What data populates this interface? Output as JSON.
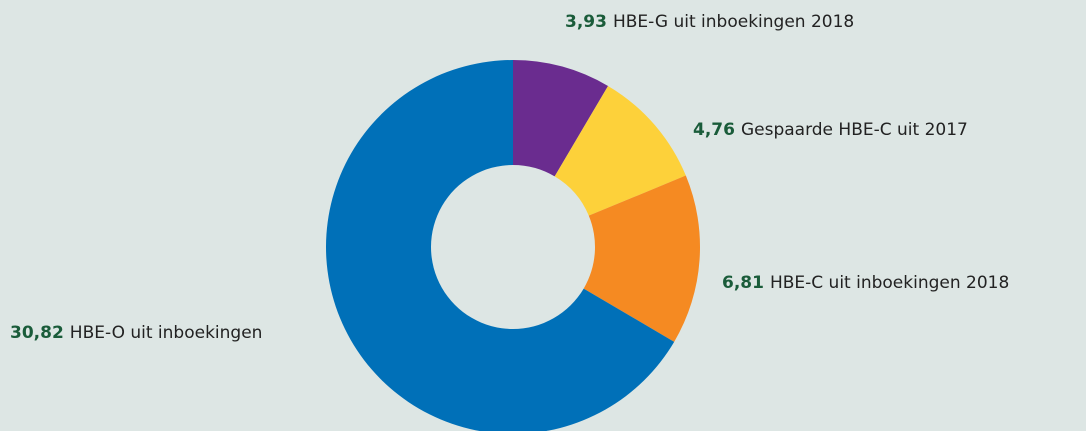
{
  "chart_data": {
    "type": "donut",
    "categories": [
      "HBE-G uit inboekingen 2018",
      "Gespaarde HBE-C uit 2017",
      "HBE-C uit inboekingen 2018",
      "HBE-O uit inboekingen"
    ],
    "values": [
      3.93,
      4.76,
      6.81,
      30.82
    ],
    "value_labels": [
      "3,93",
      "4,76",
      "6,81",
      "30,82"
    ],
    "colors": [
      "#6a2c8f",
      "#fdd13a",
      "#f58a22",
      "#0070b8"
    ]
  }
}
